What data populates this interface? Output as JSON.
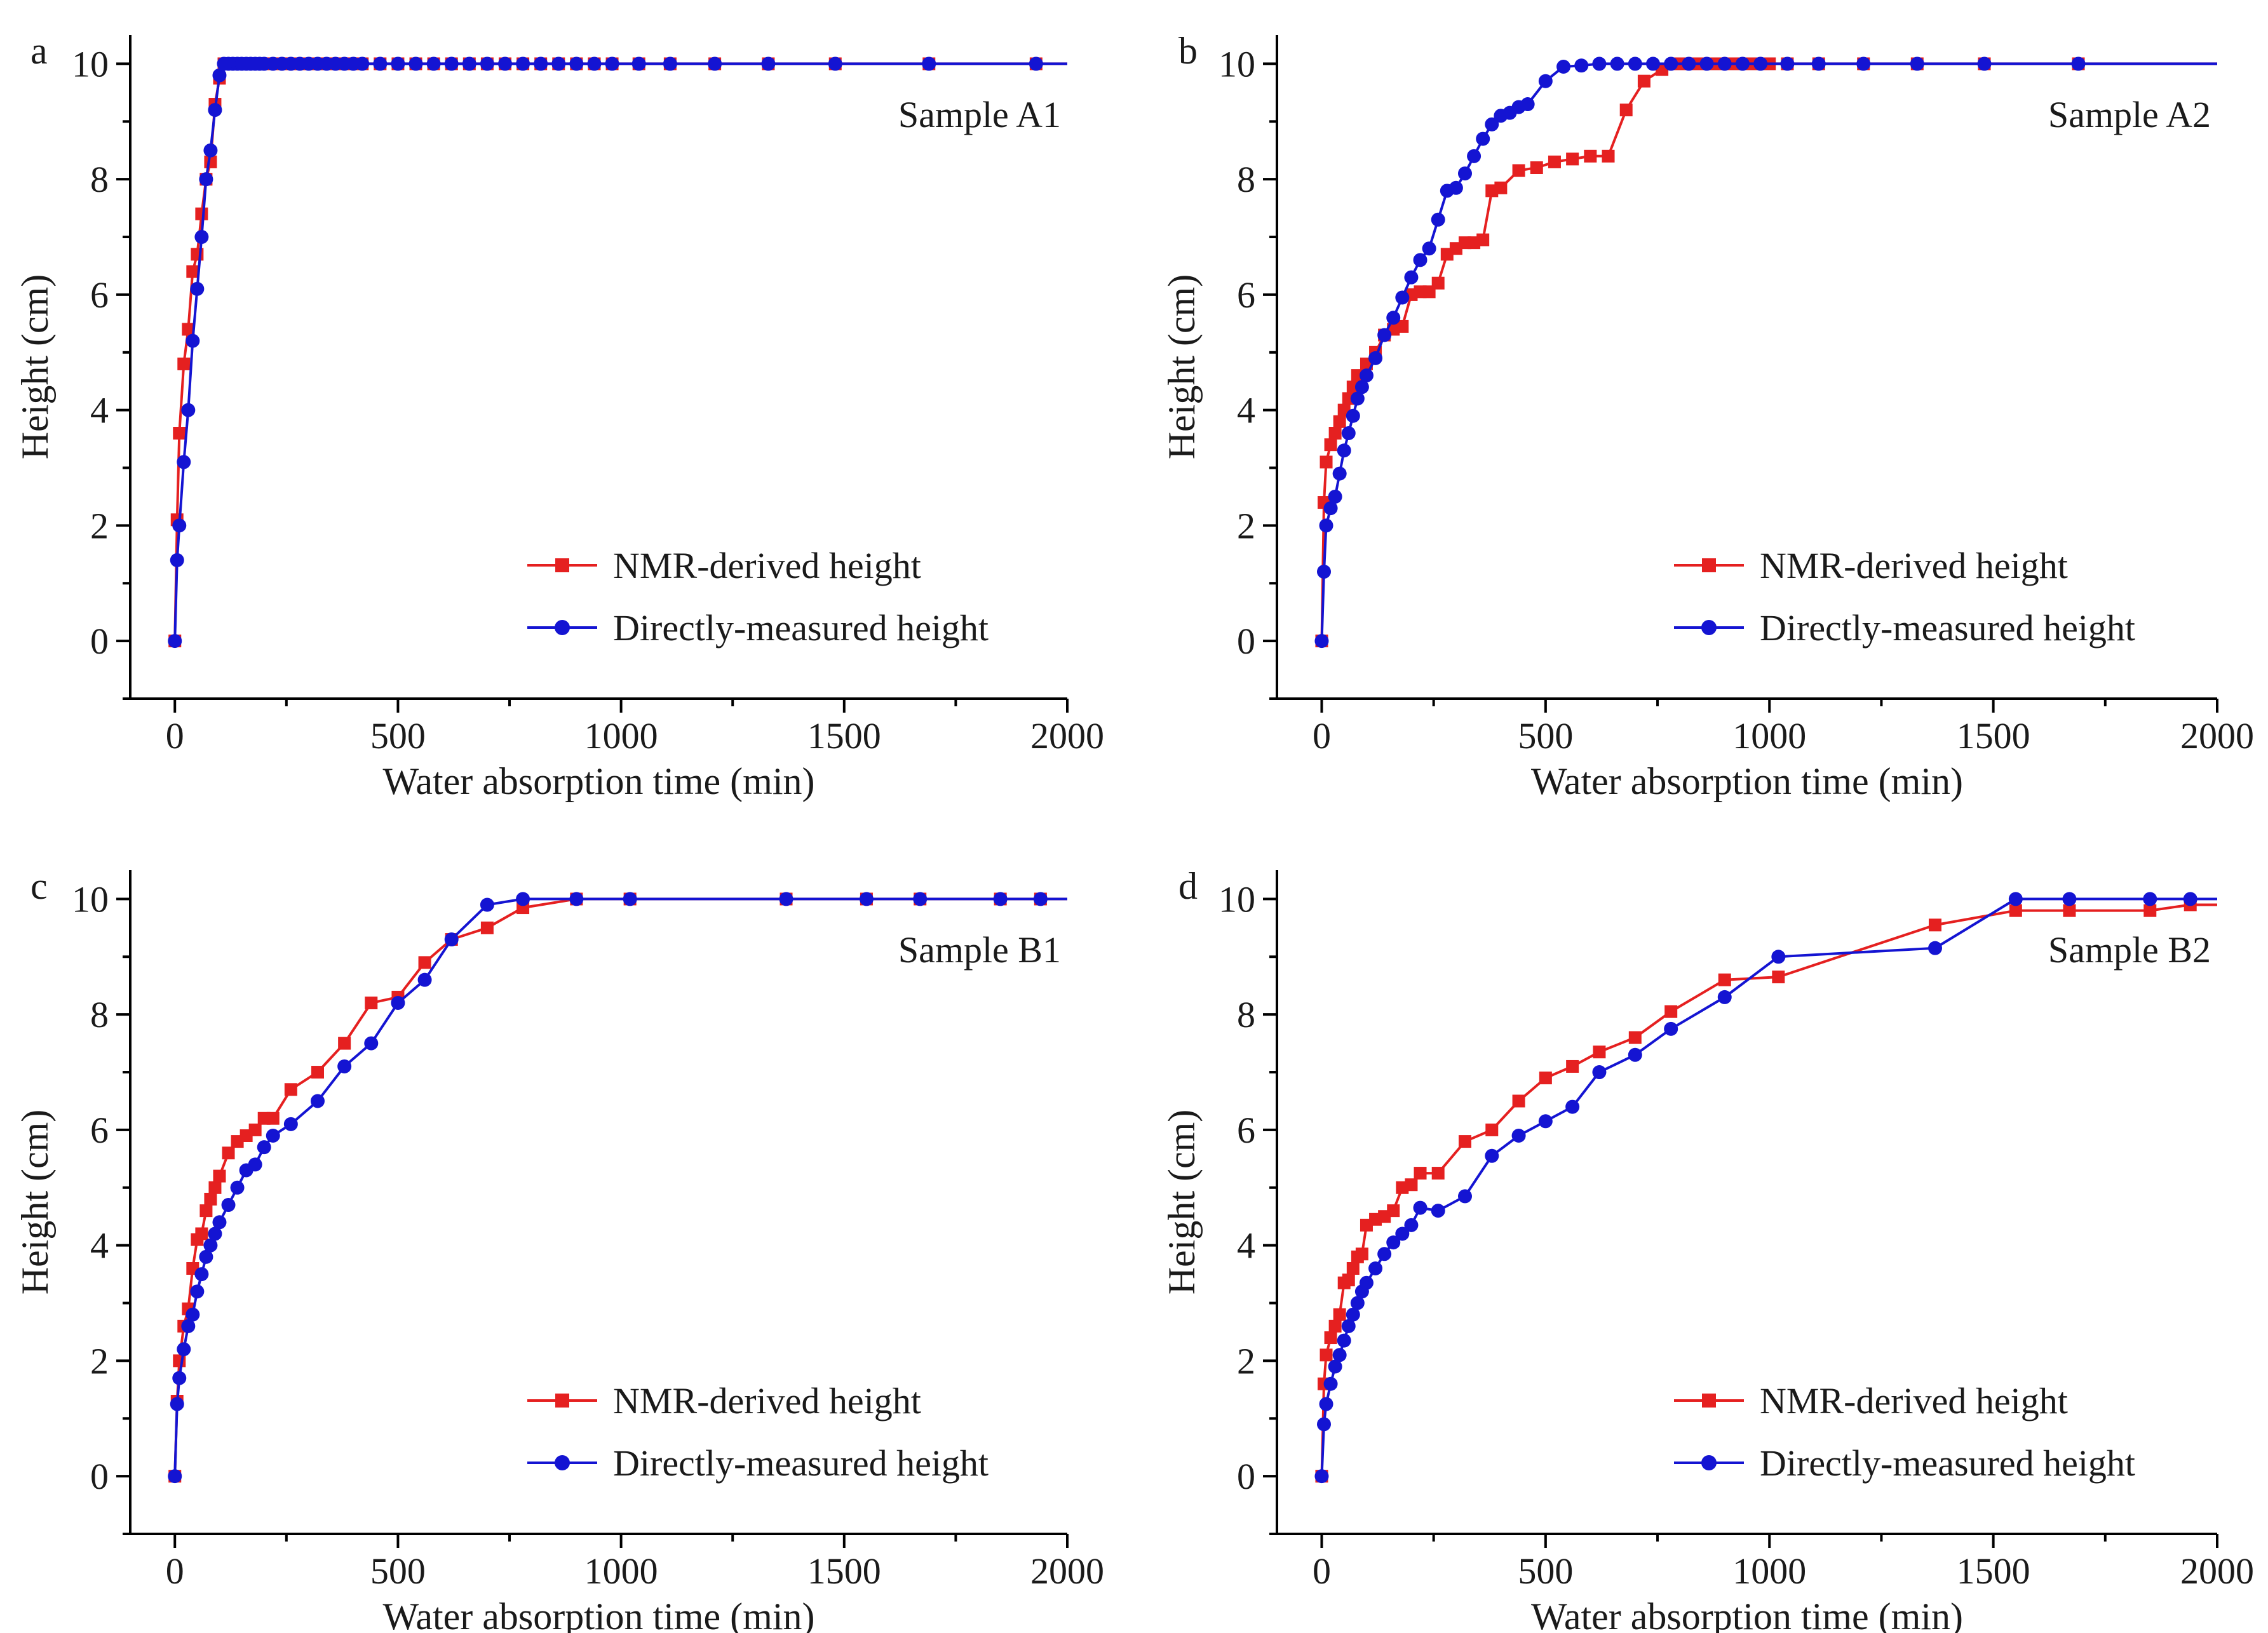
{
  "figure": {
    "panels_description": "Four panels comparing NMR-derived and directly-measured capillary rise height vs water absorption time"
  },
  "chart_data": [
    {
      "type": "line",
      "panel_letter": "a",
      "annotation": "Sample A1",
      "xlabel": "Water absorption time (min)",
      "ylabel": "Height (cm)",
      "xlim": [
        -100,
        2000
      ],
      "ylim": [
        -1,
        10.5
      ],
      "xticks": [
        0,
        500,
        1000,
        1500,
        2000
      ],
      "yticks": [
        0,
        2,
        4,
        6,
        8,
        10
      ],
      "legend_position": "bottom-right",
      "series": [
        {
          "name": "NMR-derived height",
          "color": "#e52020",
          "marker": "square",
          "x": [
            0,
            5,
            10,
            20,
            30,
            40,
            50,
            60,
            70,
            80,
            90,
            100,
            110,
            120,
            130,
            140,
            150,
            160,
            170,
            180,
            190,
            200,
            220,
            240,
            260,
            280,
            300,
            320,
            340,
            360,
            380,
            400,
            420,
            460,
            500,
            540,
            580,
            620,
            660,
            700,
            740,
            780,
            820,
            860,
            900,
            940,
            980,
            1040,
            1110,
            1210,
            1330,
            1480,
            1690,
            1930
          ],
          "y": [
            0,
            2.1,
            3.6,
            4.8,
            5.4,
            6.4,
            6.7,
            7.4,
            8.0,
            8.3,
            9.3,
            9.75,
            10,
            10,
            10,
            10,
            10,
            10,
            10,
            10,
            10,
            10,
            10,
            10,
            10,
            10,
            10,
            10,
            10,
            10,
            10,
            10,
            10,
            10,
            10,
            10,
            10,
            10,
            10,
            10,
            10,
            10,
            10,
            10,
            10,
            10,
            10,
            10,
            10,
            10,
            10,
            10,
            10,
            10
          ]
        },
        {
          "name": "Directly-measured height",
          "color": "#1414d2",
          "marker": "circle",
          "x": [
            0,
            5,
            10,
            20,
            30,
            40,
            50,
            60,
            70,
            80,
            90,
            100,
            110,
            120,
            130,
            140,
            150,
            160,
            170,
            180,
            190,
            200,
            220,
            240,
            260,
            280,
            300,
            320,
            340,
            360,
            380,
            400,
            420,
            460,
            500,
            540,
            580,
            620,
            660,
            700,
            740,
            780,
            820,
            860,
            900,
            940,
            980,
            1040,
            1110,
            1210,
            1330,
            1480,
            1690,
            1930
          ],
          "y": [
            0,
            1.4,
            2.0,
            3.1,
            4.0,
            5.2,
            6.1,
            7.0,
            8.0,
            8.5,
            9.2,
            9.8,
            10,
            10,
            10,
            10,
            10,
            10,
            10,
            10,
            10,
            10,
            10,
            10,
            10,
            10,
            10,
            10,
            10,
            10,
            10,
            10,
            10,
            10,
            10,
            10,
            10,
            10,
            10,
            10,
            10,
            10,
            10,
            10,
            10,
            10,
            10,
            10,
            10,
            10,
            10,
            10,
            10,
            10
          ]
        }
      ]
    },
    {
      "type": "line",
      "panel_letter": "b",
      "annotation": "Sample A2",
      "xlabel": "Water absorption time (min)",
      "ylabel": "Height (cm)",
      "xlim": [
        -100,
        2000
      ],
      "ylim": [
        -1,
        10.5
      ],
      "xticks": [
        0,
        500,
        1000,
        1500,
        2000
      ],
      "yticks": [
        0,
        2,
        4,
        6,
        8,
        10
      ],
      "legend_position": "bottom-right",
      "series": [
        {
          "name": "NMR-derived height",
          "color": "#e52020",
          "marker": "square",
          "x": [
            0,
            5,
            10,
            20,
            30,
            40,
            50,
            60,
            70,
            80,
            100,
            120,
            140,
            160,
            180,
            200,
            220,
            240,
            260,
            280,
            300,
            320,
            340,
            360,
            380,
            400,
            440,
            480,
            520,
            560,
            600,
            640,
            680,
            720,
            760,
            800,
            840,
            880,
            920,
            960,
            1000,
            1040,
            1110,
            1210,
            1330,
            1480,
            1690
          ],
          "y": [
            0,
            2.4,
            3.1,
            3.4,
            3.6,
            3.8,
            4.0,
            4.2,
            4.4,
            4.6,
            4.8,
            5.0,
            5.3,
            5.4,
            5.45,
            6.0,
            6.05,
            6.05,
            6.2,
            6.7,
            6.8,
            6.9,
            6.9,
            6.95,
            7.8,
            7.85,
            8.15,
            8.2,
            8.3,
            8.35,
            8.4,
            8.4,
            9.2,
            9.7,
            9.9,
            10,
            10,
            10,
            10,
            10,
            10,
            10,
            10,
            10,
            10,
            10,
            10
          ]
        },
        {
          "name": "Directly-measured height",
          "color": "#1414d2",
          "marker": "circle",
          "x": [
            0,
            5,
            10,
            20,
            30,
            40,
            50,
            60,
            70,
            80,
            90,
            100,
            120,
            140,
            160,
            180,
            200,
            220,
            240,
            260,
            280,
            300,
            320,
            340,
            360,
            380,
            400,
            420,
            440,
            460,
            500,
            540,
            580,
            620,
            660,
            700,
            740,
            780,
            820,
            860,
            900,
            940,
            980,
            1040,
            1110,
            1210,
            1330,
            1480,
            1690
          ],
          "y": [
            0,
            1.2,
            2.0,
            2.3,
            2.5,
            2.9,
            3.3,
            3.6,
            3.9,
            4.2,
            4.4,
            4.6,
            4.9,
            5.3,
            5.6,
            5.95,
            6.3,
            6.6,
            6.8,
            7.3,
            7.8,
            7.85,
            8.1,
            8.4,
            8.7,
            8.95,
            9.1,
            9.15,
            9.25,
            9.3,
            9.7,
            9.95,
            9.97,
            10,
            10,
            10,
            10,
            10,
            10,
            10,
            10,
            10,
            10,
            10,
            10,
            10,
            10,
            10,
            10
          ]
        }
      ]
    },
    {
      "type": "line",
      "panel_letter": "c",
      "annotation": "Sample B1",
      "xlabel": "Water absorption time (min)",
      "ylabel": "Height (cm)",
      "xlim": [
        -100,
        2000
      ],
      "ylim": [
        -1,
        10.5
      ],
      "xticks": [
        0,
        500,
        1000,
        1500,
        2000
      ],
      "yticks": [
        0,
        2,
        4,
        6,
        8,
        10
      ],
      "legend_position": "bottom-right",
      "series": [
        {
          "name": "NMR-derived height",
          "color": "#e52020",
          "marker": "square",
          "x": [
            0,
            5,
            10,
            20,
            30,
            40,
            50,
            60,
            70,
            80,
            90,
            100,
            120,
            140,
            160,
            180,
            200,
            220,
            260,
            320,
            380,
            440,
            500,
            560,
            620,
            700,
            780,
            900,
            1020,
            1370,
            1550,
            1670,
            1850,
            1940
          ],
          "y": [
            0,
            1.3,
            2.0,
            2.6,
            2.9,
            3.6,
            4.1,
            4.2,
            4.6,
            4.8,
            5.0,
            5.2,
            5.6,
            5.8,
            5.9,
            6.0,
            6.2,
            6.2,
            6.7,
            7.0,
            7.5,
            8.2,
            8.3,
            8.9,
            9.3,
            9.5,
            9.85,
            10,
            10,
            10,
            10,
            10,
            10,
            10
          ]
        },
        {
          "name": "Directly-measured height",
          "color": "#1414d2",
          "marker": "circle",
          "x": [
            0,
            5,
            10,
            20,
            30,
            40,
            50,
            60,
            70,
            80,
            90,
            100,
            120,
            140,
            160,
            180,
            200,
            220,
            260,
            320,
            380,
            440,
            500,
            560,
            620,
            700,
            780,
            900,
            1020,
            1370,
            1550,
            1670,
            1850,
            1940
          ],
          "y": [
            0,
            1.25,
            1.7,
            2.2,
            2.6,
            2.8,
            3.2,
            3.5,
            3.8,
            4.0,
            4.2,
            4.4,
            4.7,
            5.0,
            5.3,
            5.4,
            5.7,
            5.9,
            6.1,
            6.5,
            7.1,
            7.5,
            8.2,
            8.6,
            9.3,
            9.9,
            10,
            10,
            10,
            10,
            10,
            10,
            10,
            10
          ]
        }
      ]
    },
    {
      "type": "line",
      "panel_letter": "d",
      "annotation": "Sample B2",
      "xlabel": "Water absorption time (min)",
      "ylabel": "Height (cm)",
      "xlim": [
        -100,
        2000
      ],
      "ylim": [
        -1,
        10.5
      ],
      "xticks": [
        0,
        500,
        1000,
        1500,
        2000
      ],
      "yticks": [
        0,
        2,
        4,
        6,
        8,
        10
      ],
      "legend_position": "bottom-right",
      "series": [
        {
          "name": "NMR-derived height",
          "color": "#e52020",
          "marker": "square",
          "x": [
            0,
            5,
            10,
            20,
            30,
            40,
            50,
            60,
            70,
            80,
            90,
            100,
            120,
            140,
            160,
            180,
            200,
            220,
            260,
            320,
            380,
            440,
            500,
            560,
            620,
            700,
            780,
            900,
            1020,
            1370,
            1550,
            1670,
            1850,
            1940
          ],
          "y": [
            0,
            1.6,
            2.1,
            2.4,
            2.6,
            2.8,
            3.35,
            3.4,
            3.6,
            3.8,
            3.85,
            4.35,
            4.45,
            4.5,
            4.6,
            5.0,
            5.05,
            5.25,
            5.25,
            5.8,
            6.0,
            6.5,
            6.9,
            7.1,
            7.35,
            7.6,
            8.05,
            8.6,
            8.65,
            9.55,
            9.8,
            9.8,
            9.8,
            9.9
          ]
        },
        {
          "name": "Directly-measured height",
          "color": "#1414d2",
          "marker": "circle",
          "x": [
            0,
            5,
            10,
            20,
            30,
            40,
            50,
            60,
            70,
            80,
            90,
            100,
            120,
            140,
            160,
            180,
            200,
            220,
            260,
            320,
            380,
            440,
            500,
            560,
            620,
            700,
            780,
            900,
            1020,
            1370,
            1550,
            1670,
            1850,
            1940
          ],
          "y": [
            0,
            0.9,
            1.25,
            1.6,
            1.9,
            2.1,
            2.35,
            2.6,
            2.8,
            3.0,
            3.2,
            3.35,
            3.6,
            3.85,
            4.05,
            4.2,
            4.35,
            4.65,
            4.6,
            4.85,
            5.55,
            5.9,
            6.15,
            6.4,
            7.0,
            7.3,
            7.75,
            8.3,
            9.0,
            9.15,
            10,
            10,
            10,
            10
          ]
        }
      ]
    }
  ]
}
